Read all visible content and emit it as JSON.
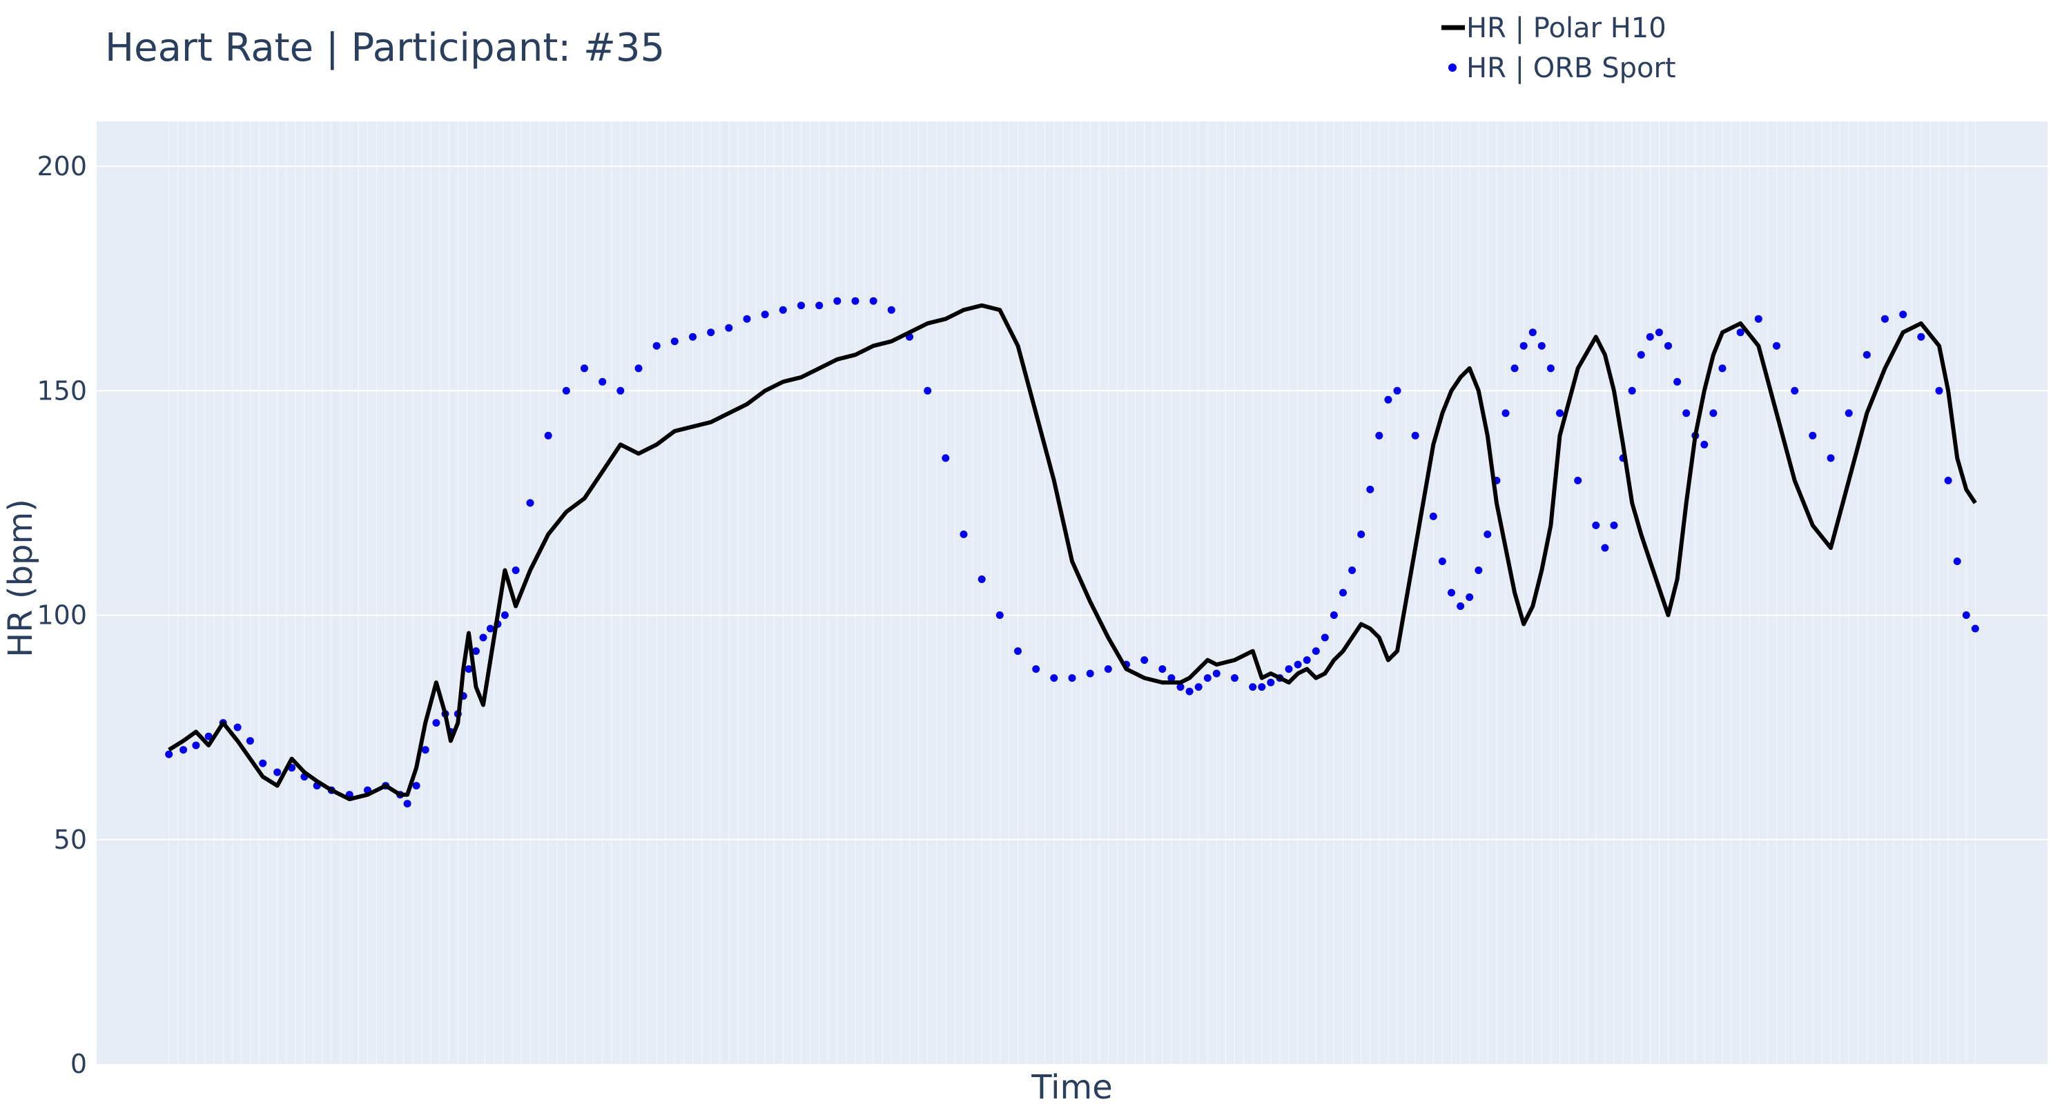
{
  "chart_data": {
    "type": "line",
    "title": "Heart Rate | Participant: #35",
    "xlabel": "Time",
    "ylabel": "HR (bpm)",
    "ylim": [
      0,
      210
    ],
    "yticks": [
      0,
      50,
      100,
      150,
      200
    ],
    "xlim": [
      -40,
      1040
    ],
    "grid": true,
    "legend_position": "top-right",
    "colors": {
      "plot_bg": "#e5ecf6",
      "grid": "#ffffff",
      "text": "#2a3f5f"
    },
    "series": [
      {
        "name": "HR | Polar H10",
        "kind": "line",
        "color": "#000000",
        "x": [
          0,
          8,
          15,
          22,
          30,
          38,
          45,
          52,
          60,
          68,
          75,
          82,
          90,
          100,
          110,
          120,
          128,
          132,
          137,
          142,
          148,
          153,
          156,
          160,
          163,
          166,
          170,
          174,
          178,
          182,
          186,
          192,
          200,
          210,
          220,
          230,
          240,
          250,
          260,
          270,
          280,
          290,
          300,
          310,
          320,
          330,
          340,
          350,
          360,
          370,
          380,
          390,
          400,
          410,
          420,
          430,
          440,
          450,
          460,
          470,
          480,
          490,
          500,
          510,
          520,
          530,
          540,
          550,
          555,
          560,
          565,
          570,
          575,
          580,
          590,
          600,
          605,
          610,
          615,
          620,
          625,
          630,
          635,
          640,
          645,
          650,
          655,
          660,
          665,
          670,
          675,
          680,
          690,
          700,
          705,
          710,
          715,
          720,
          725,
          730,
          735,
          740,
          745,
          750,
          755,
          760,
          765,
          770,
          780,
          790,
          795,
          800,
          805,
          810,
          815,
          820,
          825,
          830,
          835,
          840,
          845,
          850,
          855,
          860,
          870,
          880,
          890,
          900,
          910,
          920,
          930,
          940,
          950,
          960,
          970,
          980,
          985,
          990,
          995,
          1000
        ],
        "y": [
          70,
          72,
          74,
          71,
          76,
          72,
          68,
          64,
          62,
          68,
          65,
          63,
          61,
          59,
          60,
          62,
          60,
          60,
          66,
          76,
          85,
          78,
          72,
          76,
          88,
          96,
          84,
          80,
          90,
          100,
          110,
          102,
          110,
          118,
          123,
          126,
          132,
          138,
          136,
          138,
          141,
          142,
          143,
          145,
          147,
          150,
          152,
          153,
          155,
          157,
          158,
          160,
          161,
          163,
          165,
          166,
          168,
          169,
          168,
          160,
          145,
          130,
          112,
          103,
          95,
          88,
          86,
          85,
          85,
          85,
          86,
          88,
          90,
          89,
          90,
          92,
          86,
          87,
          86,
          85,
          87,
          88,
          86,
          87,
          90,
          92,
          95,
          98,
          97,
          95,
          90,
          92,
          115,
          138,
          145,
          150,
          153,
          155,
          150,
          140,
          125,
          115,
          105,
          98,
          102,
          110,
          120,
          140,
          155,
          162,
          158,
          150,
          138,
          125,
          118,
          112,
          106,
          100,
          108,
          125,
          140,
          150,
          158,
          163,
          165,
          160,
          145,
          130,
          120,
          115,
          130,
          145,
          155,
          163,
          165,
          160,
          150,
          135,
          128,
          125
        ]
      },
      {
        "name": "HR | ORB Sport",
        "kind": "markers",
        "color": "#0000ee",
        "x": [
          0,
          8,
          15,
          22,
          30,
          38,
          45,
          52,
          60,
          68,
          75,
          82,
          90,
          100,
          110,
          120,
          128,
          132,
          137,
          142,
          148,
          153,
          156,
          160,
          163,
          166,
          170,
          174,
          178,
          182,
          186,
          192,
          200,
          210,
          220,
          230,
          240,
          250,
          260,
          270,
          280,
          290,
          300,
          310,
          320,
          330,
          340,
          350,
          360,
          370,
          380,
          390,
          400,
          410,
          420,
          430,
          440,
          450,
          460,
          470,
          480,
          490,
          500,
          510,
          520,
          530,
          540,
          550,
          555,
          560,
          565,
          570,
          575,
          580,
          590,
          600,
          605,
          610,
          615,
          620,
          625,
          630,
          635,
          640,
          645,
          650,
          655,
          660,
          665,
          670,
          675,
          680,
          690,
          700,
          705,
          710,
          715,
          720,
          725,
          730,
          735,
          740,
          745,
          750,
          755,
          760,
          765,
          770,
          780,
          790,
          795,
          800,
          805,
          810,
          815,
          820,
          825,
          830,
          835,
          840,
          845,
          850,
          855,
          860,
          870,
          880,
          890,
          900,
          910,
          920,
          930,
          940,
          950,
          960,
          970,
          980,
          985,
          990,
          995,
          1000
        ],
        "y": [
          69,
          70,
          71,
          73,
          76,
          75,
          72,
          67,
          65,
          66,
          64,
          62,
          61,
          60,
          61,
          62,
          60,
          58,
          62,
          70,
          76,
          78,
          74,
          78,
          82,
          88,
          92,
          95,
          97,
          98,
          100,
          110,
          125,
          140,
          150,
          155,
          152,
          150,
          155,
          160,
          161,
          162,
          163,
          164,
          166,
          167,
          168,
          169,
          169,
          170,
          170,
          170,
          168,
          162,
          150,
          135,
          118,
          108,
          100,
          92,
          88,
          86,
          86,
          87,
          88,
          89,
          90,
          88,
          86,
          84,
          83,
          84,
          86,
          87,
          86,
          84,
          84,
          85,
          86,
          88,
          89,
          90,
          92,
          95,
          100,
          105,
          110,
          118,
          128,
          140,
          148,
          150,
          140,
          122,
          112,
          105,
          102,
          104,
          110,
          118,
          130,
          145,
          155,
          160,
          163,
          160,
          155,
          145,
          130,
          120,
          115,
          120,
          135,
          150,
          158,
          162,
          163,
          160,
          152,
          145,
          140,
          138,
          145,
          155,
          163,
          166,
          160,
          150,
          140,
          135,
          145,
          158,
          166,
          167,
          162,
          150,
          130,
          112,
          100,
          97
        ]
      }
    ]
  }
}
